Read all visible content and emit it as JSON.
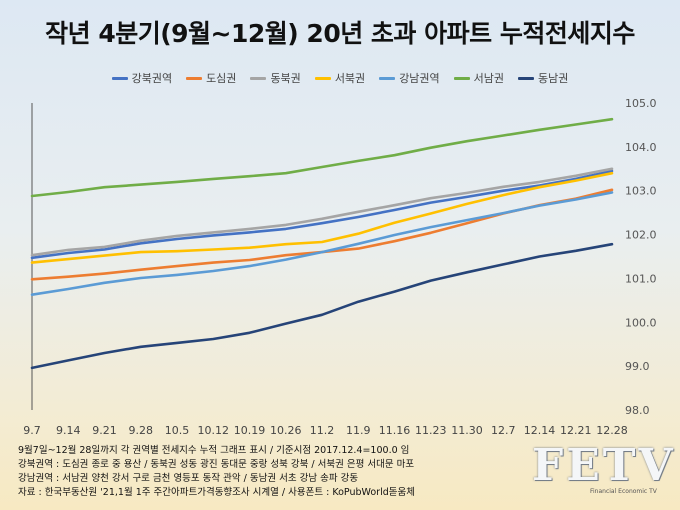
{
  "title": "작년 4분기(9월~12월) 20년 초과 아파트 누적전세지수",
  "chart_data": {
    "type": "line",
    "title": "작년 4분기(9월~12월) 20년 초과 아파트 누적전세지수",
    "categories": [
      "9.7",
      "9.14",
      "9.21",
      "9.28",
      "10.5",
      "10.12",
      "10.19",
      "10.26",
      "11.2",
      "11.9",
      "11.16",
      "11.23",
      "11.30",
      "12.7",
      "12.14",
      "12.21",
      "12.28"
    ],
    "ylim": [
      98.0,
      105.0
    ],
    "yticks": [
      "98.0",
      "99.0",
      "100.0",
      "101.0",
      "102.0",
      "103.0",
      "104.0",
      "105.0"
    ],
    "y_axis_side": "right",
    "grid": false,
    "legend_position": "top",
    "series": [
      {
        "name": "강북권역",
        "color": "#4472c4",
        "values": [
          101.47,
          101.58,
          101.66,
          101.8,
          101.9,
          101.98,
          102.05,
          102.13,
          102.26,
          102.4,
          102.56,
          102.73,
          102.86,
          103.0,
          103.12,
          103.27,
          103.45
        ]
      },
      {
        "name": "도심권",
        "color": "#ed7d31",
        "values": [
          100.98,
          101.04,
          101.11,
          101.2,
          101.28,
          101.36,
          101.42,
          101.53,
          101.6,
          101.68,
          101.85,
          102.04,
          102.26,
          102.48,
          102.67,
          102.82,
          103.02
        ]
      },
      {
        "name": "동북권",
        "color": "#a5a5a5",
        "values": [
          101.53,
          101.65,
          101.72,
          101.86,
          101.97,
          102.05,
          102.13,
          102.22,
          102.36,
          102.52,
          102.67,
          102.83,
          102.95,
          103.09,
          103.2,
          103.34,
          103.5
        ]
      },
      {
        "name": "서북권",
        "color": "#ffc000",
        "values": [
          101.36,
          101.44,
          101.52,
          101.6,
          101.62,
          101.66,
          101.7,
          101.78,
          101.83,
          102.02,
          102.27,
          102.48,
          102.7,
          102.9,
          103.08,
          103.23,
          103.4
        ]
      },
      {
        "name": "강남권역",
        "color": "#5b9bd5",
        "values": [
          100.63,
          100.76,
          100.9,
          101.01,
          101.08,
          101.17,
          101.28,
          101.43,
          101.6,
          101.79,
          101.99,
          102.17,
          102.33,
          102.49,
          102.66,
          102.8,
          102.96
        ]
      },
      {
        "name": "서남권",
        "color": "#70ad47",
        "values": [
          102.88,
          102.97,
          103.08,
          103.14,
          103.2,
          103.27,
          103.33,
          103.4,
          103.54,
          103.68,
          103.81,
          103.98,
          104.13,
          104.26,
          104.39,
          104.51,
          104.63
        ]
      },
      {
        "name": "동남권",
        "color": "#264478",
        "values": [
          98.96,
          99.13,
          99.3,
          99.44,
          99.53,
          99.62,
          99.76,
          99.97,
          100.17,
          100.47,
          100.7,
          100.95,
          101.14,
          101.32,
          101.5,
          101.63,
          101.78
        ]
      }
    ]
  },
  "notes": [
    "9월7일~12월 28일까지 각 권역별 전세지수 누적 그래프 표시 / 기준시점 2017.12.4=100.0 임",
    "강북권역 : 도심권 종로 중 용산 / 동북권 성동 광진 동대문 중랑 성북 강북 / 서북권 은평 서대문 마포",
    "강남권역 : 서남권 양천 강서 구로 금천 영등포 동작 관악 / 동남권 서초 강남 송파 강동",
    "자료 : 한국부동산원 '21,1월 1주 주간아파트가격동향조사 시계열 / 사용폰트 : KoPubWorld돋움체"
  ],
  "logo": {
    "text": "FETV",
    "sub": "Financial Economic TV"
  }
}
